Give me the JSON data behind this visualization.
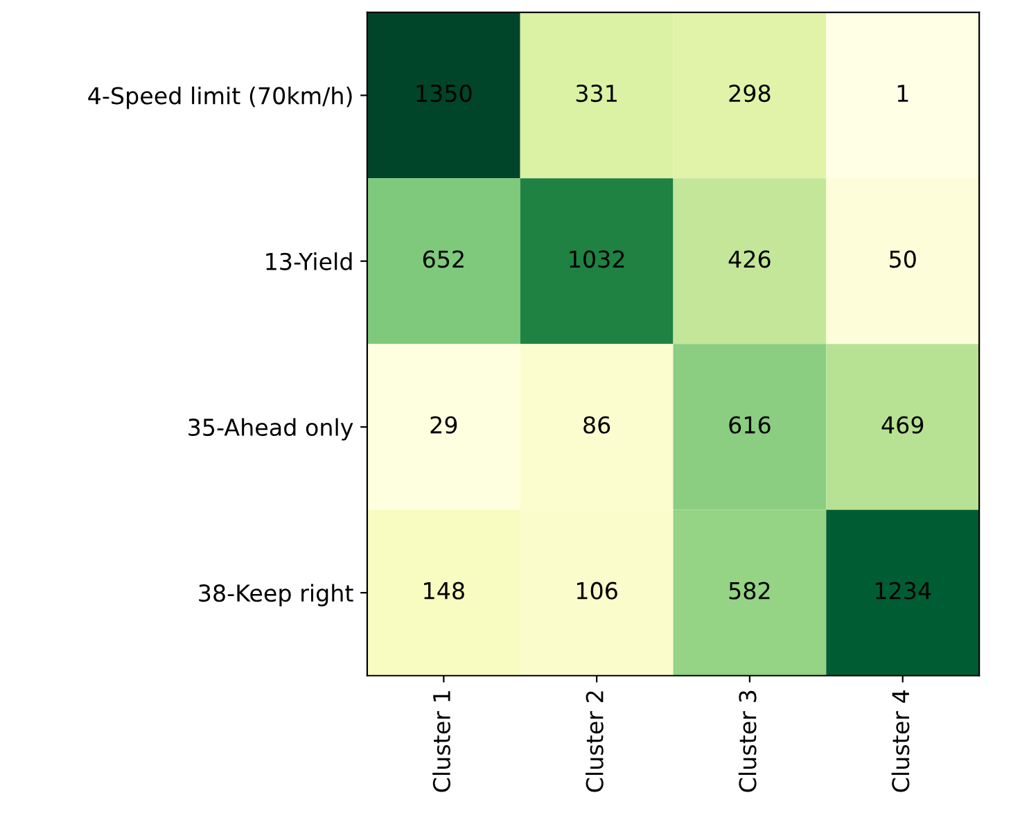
{
  "chart_data": {
    "type": "heatmap",
    "categories": [
      "Cluster 1",
      "Cluster 2",
      "Cluster 3",
      "Cluster 4"
    ],
    "y_categories": [
      "4-Speed limit (70km/h)",
      "13-Yield",
      "35-Ahead only",
      "38-Keep right"
    ],
    "cells": [
      [
        1350,
        331,
        298,
        1
      ],
      [
        652,
        1032,
        426,
        50
      ],
      [
        29,
        86,
        616,
        469
      ],
      [
        148,
        106,
        582,
        1234
      ]
    ],
    "data_labels": true
  }
}
